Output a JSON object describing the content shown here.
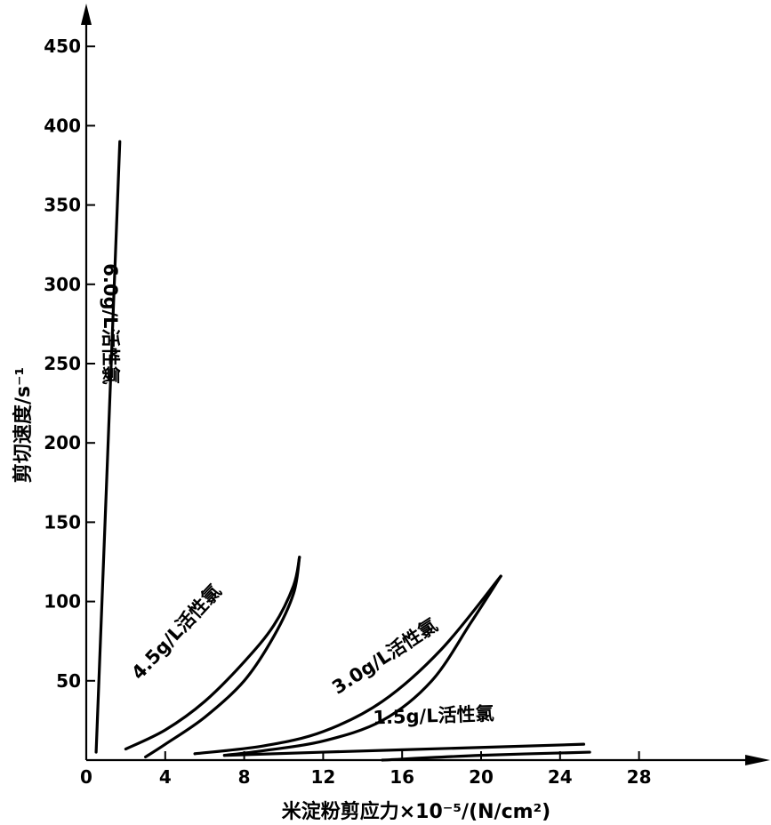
{
  "chart_data": {
    "type": "line",
    "xlabel": "米淀粉剪应力×10⁻⁵/(N/cm²)",
    "ylabel": "剪切速度/s⁻¹",
    "xlim": [
      0,
      30
    ],
    "ylim": [
      0,
      450
    ],
    "xticks": [
      0,
      4,
      8,
      12,
      16,
      20,
      24,
      28
    ],
    "yticks": [
      50,
      100,
      150,
      200,
      250,
      300,
      350,
      400,
      450
    ],
    "grid": false,
    "series": [
      {
        "name": "6.0g/L活性氯",
        "upper": [
          [
            0.5,
            5
          ],
          [
            1.7,
            390
          ]
        ],
        "lower": []
      },
      {
        "name": "4.5g/L活性氯",
        "upper": [
          [
            2,
            7
          ],
          [
            4,
            19
          ],
          [
            6,
            37
          ],
          [
            8,
            62
          ],
          [
            9.5,
            85
          ],
          [
            10.5,
            110
          ],
          [
            10.8,
            128
          ]
        ],
        "lower": [
          [
            10.8,
            128
          ],
          [
            10.5,
            105
          ],
          [
            9.5,
            78
          ],
          [
            8,
            50
          ],
          [
            6,
            27
          ],
          [
            4,
            10
          ],
          [
            3,
            2
          ]
        ]
      },
      {
        "name": "3.0g/L活性氯",
        "upper": [
          [
            5.5,
            4
          ],
          [
            9,
            9
          ],
          [
            12,
            18
          ],
          [
            15,
            37
          ],
          [
            18,
            70
          ],
          [
            21,
            116
          ]
        ],
        "lower": [
          [
            21,
            116
          ],
          [
            19.5,
            87
          ],
          [
            17.5,
            50
          ],
          [
            15,
            25
          ],
          [
            12,
            12
          ],
          [
            9,
            6
          ],
          [
            7,
            3
          ]
        ]
      },
      {
        "name": "1.5g/L活性氯",
        "upper": [
          [
            7,
            3
          ],
          [
            12,
            5
          ],
          [
            20,
            8
          ],
          [
            25.2,
            10
          ]
        ],
        "lower": [
          [
            25.5,
            5
          ],
          [
            20,
            3
          ],
          [
            15,
            0
          ]
        ]
      }
    ]
  }
}
